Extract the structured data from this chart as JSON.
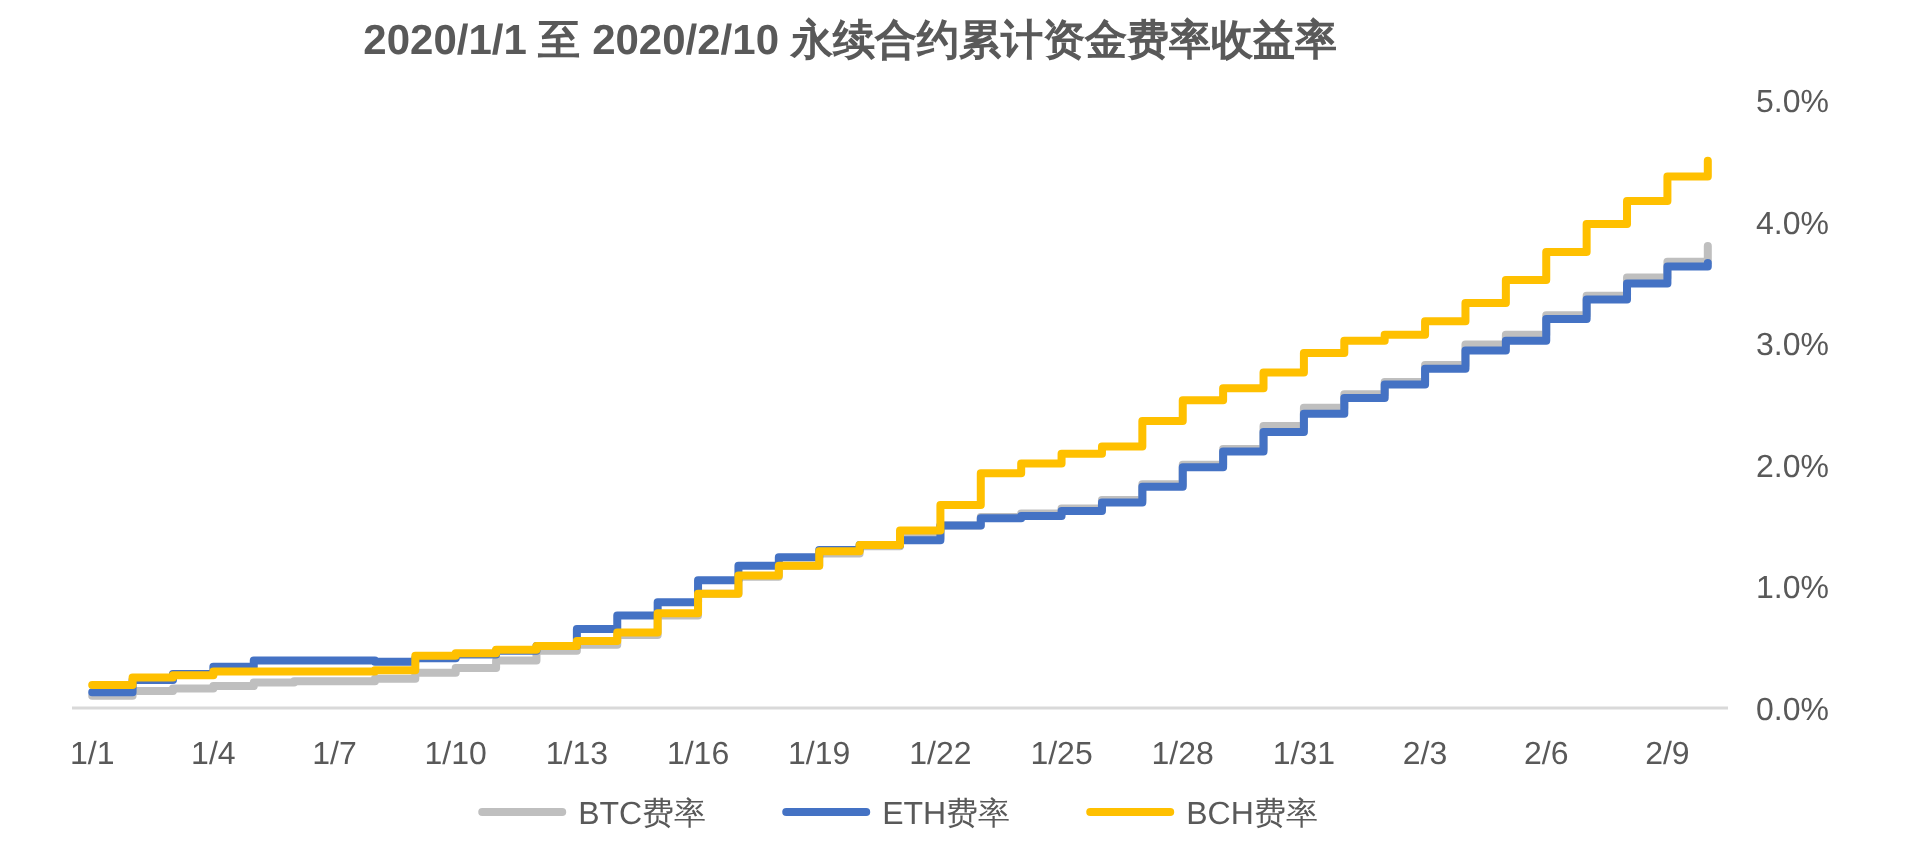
{
  "chart_data": {
    "type": "step",
    "title": "2020/1/1 至 2020/2/10 永续合约累计资金费率收益率",
    "x": [
      "2020-01-01",
      "2020-01-02",
      "2020-01-03",
      "2020-01-04",
      "2020-01-05",
      "2020-01-06",
      "2020-01-07",
      "2020-01-08",
      "2020-01-09",
      "2020-01-10",
      "2020-01-11",
      "2020-01-12",
      "2020-01-13",
      "2020-01-14",
      "2020-01-15",
      "2020-01-16",
      "2020-01-17",
      "2020-01-18",
      "2020-01-19",
      "2020-01-20",
      "2020-01-21",
      "2020-01-22",
      "2020-01-23",
      "2020-01-24",
      "2020-01-25",
      "2020-01-26",
      "2020-01-27",
      "2020-01-28",
      "2020-01-29",
      "2020-01-30",
      "2020-01-31",
      "2020-02-01",
      "2020-02-02",
      "2020-02-03",
      "2020-02-04",
      "2020-02-05",
      "2020-02-06",
      "2020-02-07",
      "2020-02-08",
      "2020-02-09",
      "2020-02-10"
    ],
    "xlim": [
      "2019-12-31T12:00",
      "2020-02-10T12:00"
    ],
    "xticks": [
      {
        "value": "2020-01-01",
        "label": "1/1"
      },
      {
        "value": "2020-01-04",
        "label": "1/4"
      },
      {
        "value": "2020-01-07",
        "label": "1/7"
      },
      {
        "value": "2020-01-10",
        "label": "1/10"
      },
      {
        "value": "2020-01-13",
        "label": "1/13"
      },
      {
        "value": "2020-01-16",
        "label": "1/16"
      },
      {
        "value": "2020-01-19",
        "label": "1/19"
      },
      {
        "value": "2020-01-22",
        "label": "1/22"
      },
      {
        "value": "2020-01-25",
        "label": "1/25"
      },
      {
        "value": "2020-01-28",
        "label": "1/28"
      },
      {
        "value": "2020-01-31",
        "label": "1/31"
      },
      {
        "value": "2020-02-03",
        "label": "2/3"
      },
      {
        "value": "2020-02-06",
        "label": "2/6"
      },
      {
        "value": "2020-02-09",
        "label": "2/9"
      }
    ],
    "ylim": [
      0,
      5
    ],
    "yticks": [
      {
        "value": 0,
        "label": "0.0%"
      },
      {
        "value": 1,
        "label": "1.0%"
      },
      {
        "value": 2,
        "label": "2.0%"
      },
      {
        "value": 3,
        "label": "3.0%"
      },
      {
        "value": 4,
        "label": "4.0%"
      },
      {
        "value": 5,
        "label": "5.0%"
      }
    ],
    "legend": "bottom",
    "series": [
      {
        "name": "BTC费率",
        "color": "#bfbfbf",
        "values": [
          0.1,
          0.14,
          0.16,
          0.18,
          0.21,
          0.22,
          0.22,
          0.24,
          0.29,
          0.33,
          0.39,
          0.47,
          0.52,
          0.6,
          0.76,
          0.94,
          1.08,
          1.17,
          1.27,
          1.33,
          1.4,
          1.5,
          1.57,
          1.6,
          1.64,
          1.71,
          1.84,
          2.0,
          2.13,
          2.32,
          2.47,
          2.58,
          2.68,
          2.82,
          2.99,
          3.07,
          3.23,
          3.39,
          3.54,
          3.67,
          3.8
        ]
      },
      {
        "name": "ETH费率",
        "color": "#4472c4",
        "values": [
          0.13,
          0.23,
          0.28,
          0.34,
          0.39,
          0.39,
          0.39,
          0.38,
          0.41,
          0.44,
          0.47,
          0.51,
          0.65,
          0.76,
          0.87,
          1.05,
          1.17,
          1.24,
          1.3,
          1.34,
          1.38,
          1.5,
          1.56,
          1.58,
          1.62,
          1.69,
          1.82,
          1.98,
          2.11,
          2.27,
          2.42,
          2.55,
          2.66,
          2.79,
          2.94,
          3.02,
          3.2,
          3.36,
          3.49,
          3.63,
          3.66
        ]
      },
      {
        "name": "BCH费率",
        "color": "#ffc000",
        "values": [
          0.19,
          0.25,
          0.27,
          0.3,
          0.3,
          0.3,
          0.3,
          0.31,
          0.43,
          0.45,
          0.48,
          0.51,
          0.55,
          0.62,
          0.78,
          0.94,
          1.09,
          1.17,
          1.29,
          1.34,
          1.46,
          1.67,
          1.93,
          2.01,
          2.09,
          2.15,
          2.36,
          2.53,
          2.63,
          2.76,
          2.92,
          3.02,
          3.07,
          3.18,
          3.33,
          3.52,
          3.75,
          3.98,
          4.17,
          4.37,
          4.5
        ]
      }
    ]
  }
}
